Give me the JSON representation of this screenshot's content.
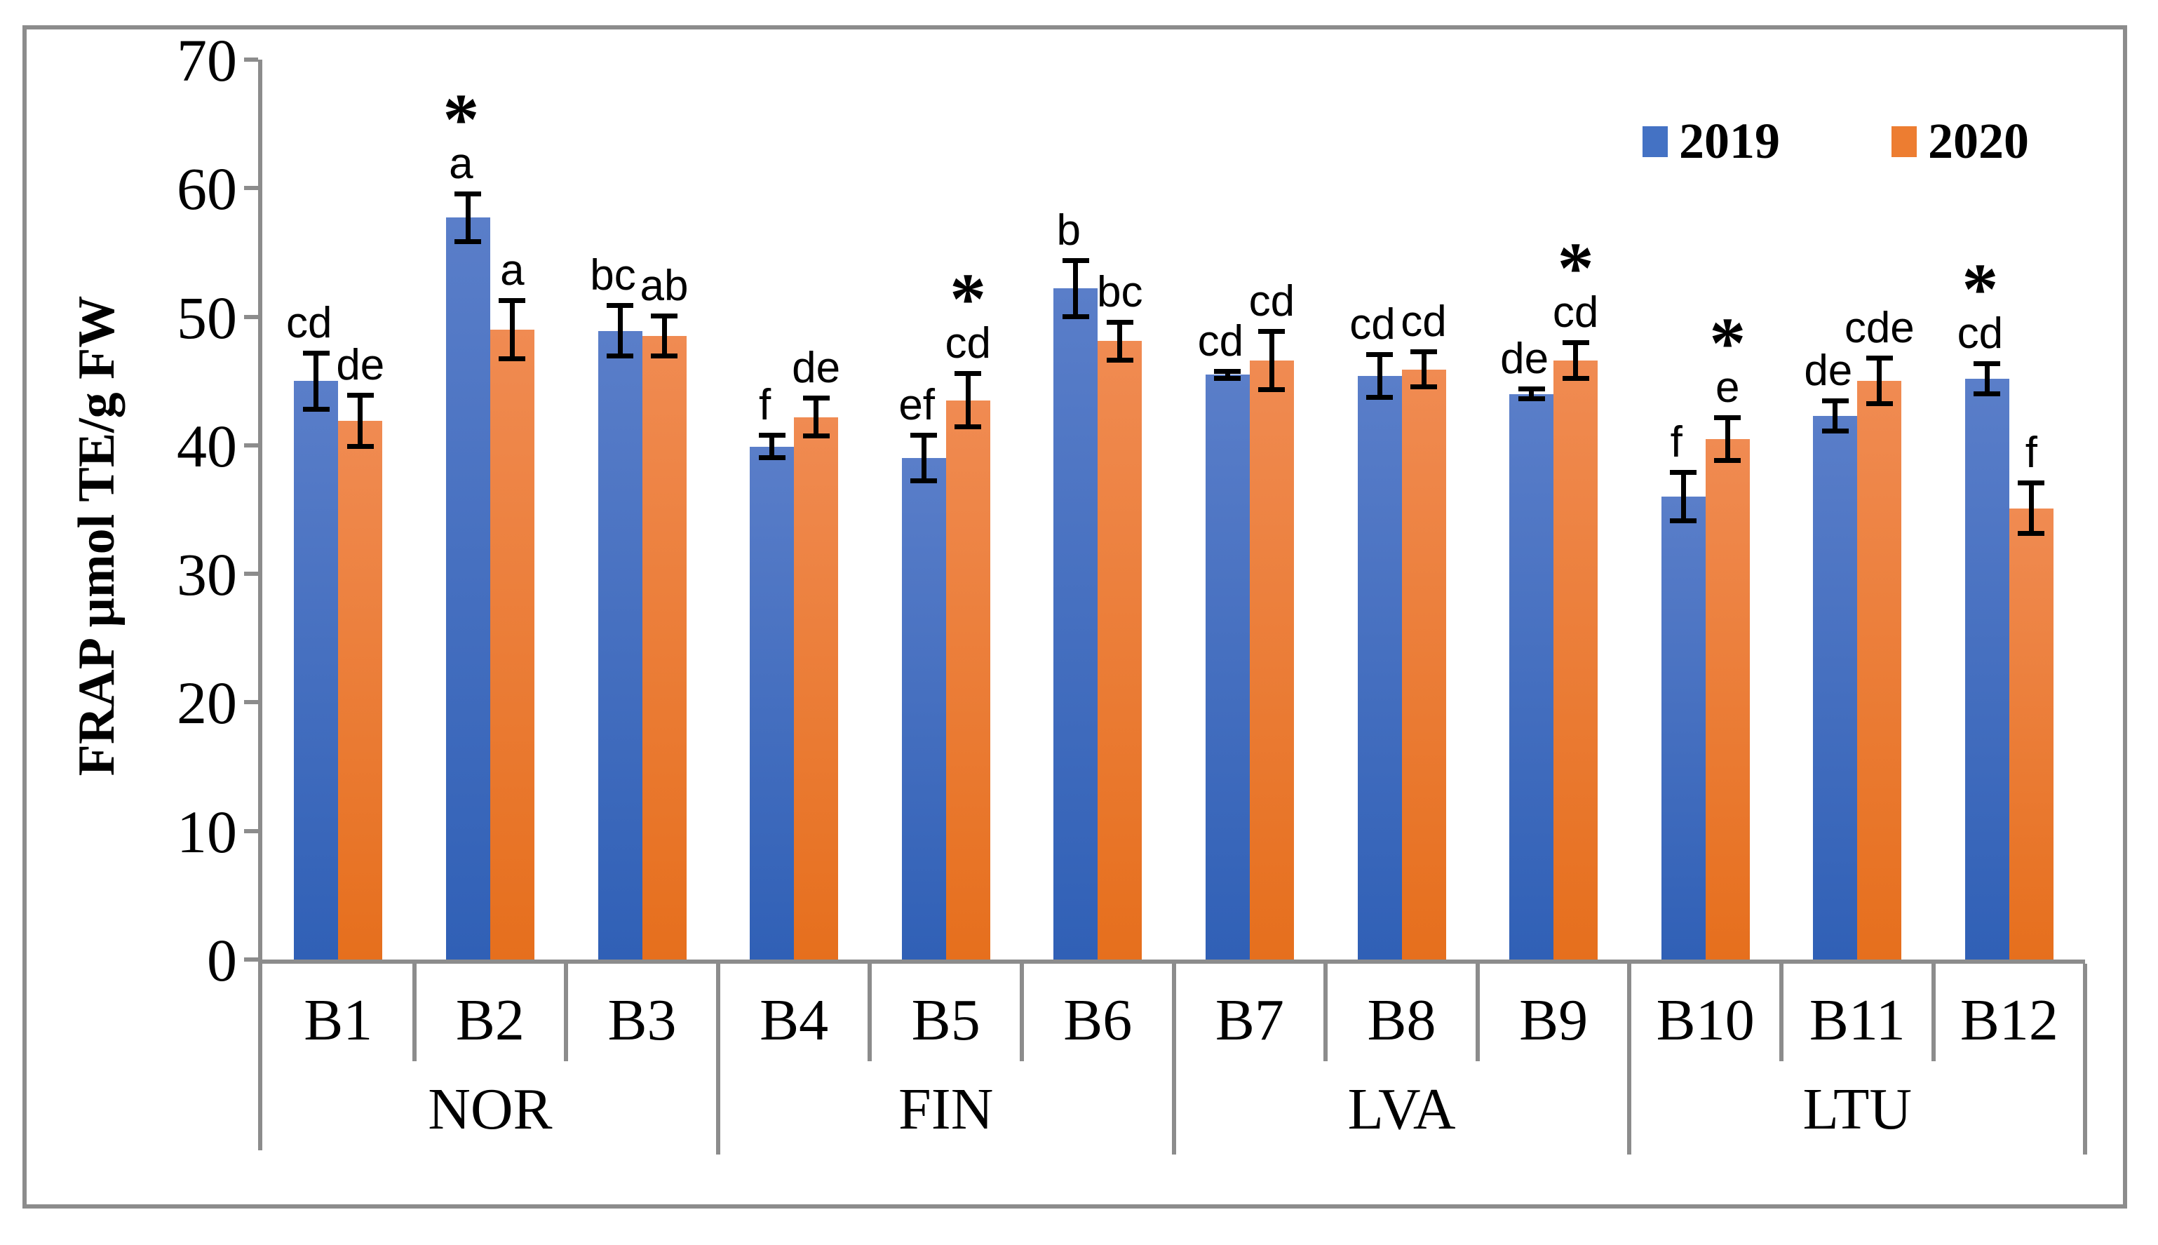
{
  "chart_data": {
    "type": "bar",
    "title": "",
    "ylabel": "FRAP µmol TE/g FW",
    "xlabel": "",
    "ylim": [
      0,
      70
    ],
    "yticks": [
      0,
      10,
      20,
      30,
      40,
      50,
      60,
      70
    ],
    "grid": "off",
    "significance_symbol": "*",
    "legend": {
      "position": "top-right-inside",
      "entries": [
        {
          "label": "2019",
          "color": "#4472C4"
        },
        {
          "label": "2020",
          "color": "#ED7D31"
        }
      ]
    },
    "categories": [
      "B1",
      "B2",
      "B3",
      "B4",
      "B5",
      "B6",
      "B7",
      "B8",
      "B9",
      "B10",
      "B11",
      "B12"
    ],
    "groups": [
      {
        "label": "NOR",
        "categories": [
          "B1",
          "B2",
          "B3"
        ]
      },
      {
        "label": "FIN",
        "categories": [
          "B4",
          "B5",
          "B6"
        ]
      },
      {
        "label": "LVA",
        "categories": [
          "B7",
          "B8",
          "B9"
        ]
      },
      {
        "label": "LTU",
        "categories": [
          "B10",
          "B11",
          "B12"
        ]
      }
    ],
    "series": [
      {
        "name": "2019",
        "color": "#4472C4",
        "values": [
          45.0,
          57.7,
          48.9,
          39.9,
          39.0,
          52.2,
          45.5,
          45.4,
          44.0,
          36.0,
          42.3,
          45.2
        ],
        "errors": [
          2.2,
          1.9,
          2.0,
          0.9,
          1.8,
          2.2,
          0.3,
          1.7,
          0.4,
          1.9,
          1.2,
          1.2
        ],
        "letters": [
          "cd",
          "a",
          "bc",
          "f",
          "ef",
          "b",
          "cd",
          "cd",
          "de",
          "f",
          "de",
          "cd"
        ],
        "significant": [
          false,
          true,
          false,
          false,
          false,
          false,
          false,
          false,
          false,
          false,
          false,
          true
        ]
      },
      {
        "name": "2020",
        "color": "#ED7D31",
        "values": [
          41.9,
          49.0,
          48.5,
          42.2,
          43.5,
          48.1,
          46.6,
          45.9,
          46.6,
          40.5,
          45.0,
          35.1
        ],
        "errors": [
          2.0,
          2.3,
          1.6,
          1.5,
          2.1,
          1.5,
          2.3,
          1.4,
          1.4,
          1.7,
          1.8,
          2.0
        ],
        "letters": [
          "de",
          "a",
          "ab",
          "de",
          "cd",
          "bc",
          "cd",
          "cd",
          "cd",
          "e",
          "cde",
          "f"
        ],
        "significant": [
          false,
          false,
          false,
          false,
          true,
          false,
          false,
          false,
          true,
          true,
          false,
          false
        ]
      }
    ]
  }
}
